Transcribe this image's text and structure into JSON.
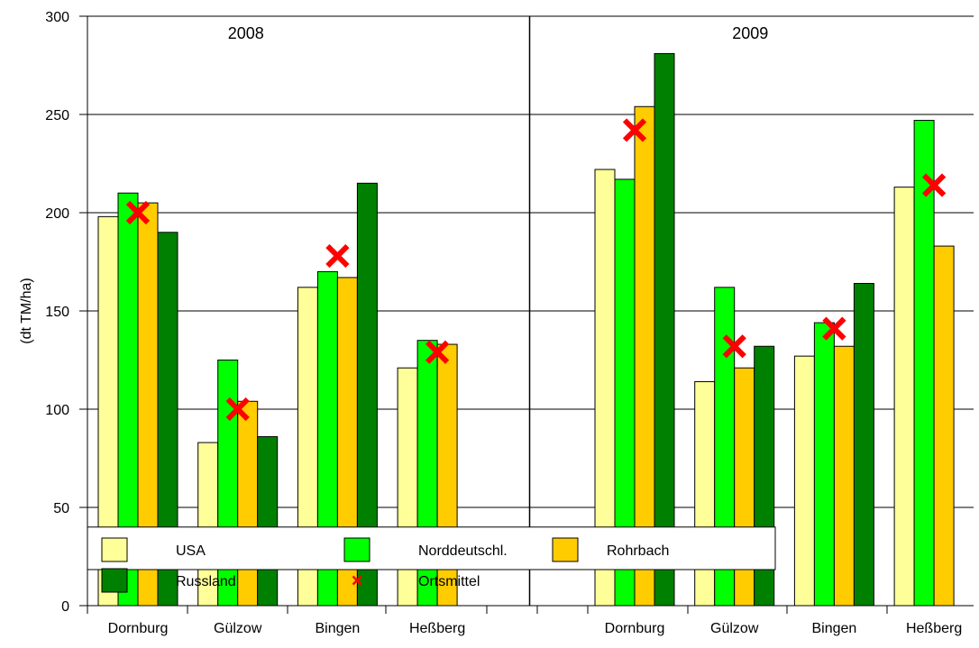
{
  "chart_data": {
    "type": "bar",
    "ylabel": "(dt TM/ha)",
    "ylim": [
      0,
      300
    ],
    "yticks": [
      0,
      50,
      100,
      150,
      200,
      250,
      300
    ],
    "grid": true,
    "groups": [
      {
        "label": "2008",
        "categories": [
          "Dornburg",
          "Gülzow",
          "Bingen",
          "Heßberg"
        ],
        "series": [
          {
            "name": "USA",
            "values": [
              198,
              83,
              162,
              121
            ]
          },
          {
            "name": "Norddeutschl.",
            "values": [
              210,
              125,
              170,
              135
            ]
          },
          {
            "name": "Rohrbach",
            "values": [
              205,
              104,
              167,
              133
            ]
          },
          {
            "name": "Russland",
            "values": [
              190,
              86,
              215,
              null
            ]
          }
        ],
        "ortsmittel": [
          200,
          100,
          178,
          129
        ]
      },
      {
        "label": "2009",
        "categories": [
          "Dornburg",
          "Gülzow",
          "Bingen",
          "Heßberg"
        ],
        "series": [
          {
            "name": "USA",
            "values": [
              222,
              114,
              127,
              213
            ]
          },
          {
            "name": "Norddeutschl.",
            "values": [
              217,
              162,
              144,
              247
            ]
          },
          {
            "name": "Rohrbach",
            "values": [
              254,
              121,
              132,
              183
            ]
          },
          {
            "name": "Russland",
            "values": [
              281,
              132,
              164,
              null
            ]
          }
        ],
        "ortsmittel": [
          242,
          132,
          141,
          214
        ]
      }
    ],
    "legend": {
      "placement": "bottom",
      "entries": [
        {
          "name": "USA",
          "color": "#ffff99",
          "marker": "box"
        },
        {
          "name": "Norddeutschl.",
          "color": "#00ff00",
          "marker": "box"
        },
        {
          "name": "Rohrbach",
          "color": "#ffcc00",
          "marker": "box"
        },
        {
          "name": "Russland",
          "color": "#008000",
          "marker": "box"
        },
        {
          "name": "Ortsmittel",
          "color": "#ff0000",
          "marker": "cross"
        }
      ]
    },
    "colors": {
      "USA": "#ffff99",
      "Norddeutschl.": "#00ff00",
      "Rohrbach": "#ffcc00",
      "Russland": "#008000",
      "Ortsmittel": "#ff0000"
    }
  }
}
